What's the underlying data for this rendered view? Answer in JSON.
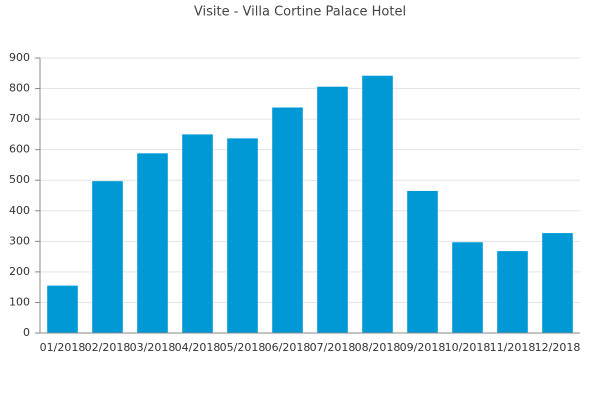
{
  "chart_data": {
    "type": "bar",
    "title": "Visite - Villa Cortine Palace Hotel",
    "categories": [
      "01/2018",
      "02/2018",
      "03/2018",
      "04/2018",
      "05/2018",
      "06/2018",
      "07/2018",
      "08/2018",
      "09/2018",
      "10/2018",
      "11/2018",
      "12/2018"
    ],
    "values": [
      155,
      497,
      588,
      650,
      637,
      738,
      806,
      842,
      465,
      297,
      268,
      327
    ],
    "color": "#0099d6",
    "ylim": [
      0,
      900
    ],
    "yticks": [
      0,
      100,
      200,
      300,
      400,
      500,
      600,
      700,
      800,
      900
    ],
    "grid": true
  }
}
